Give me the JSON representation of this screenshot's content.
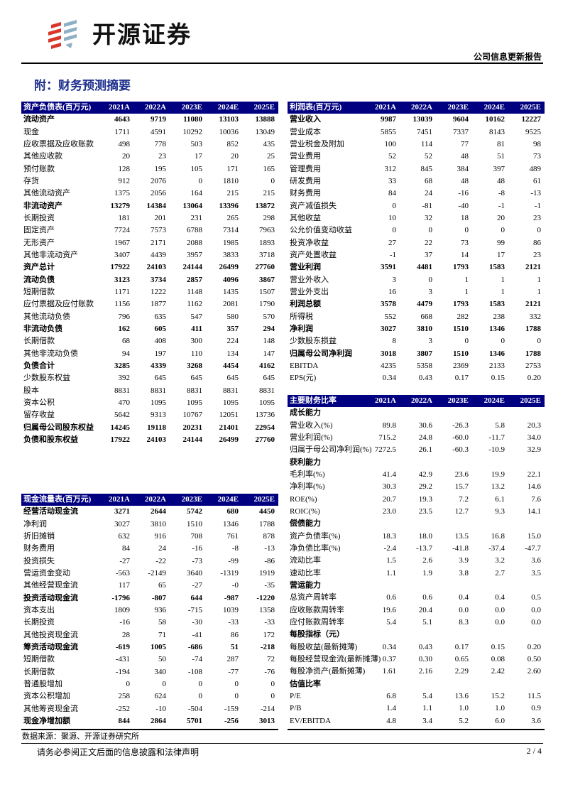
{
  "header": {
    "brand": "开源证券",
    "report_type": "公司信息更新报告",
    "colors": {
      "brand_red": "#d9372b",
      "brand_blue": "#8fb0c4"
    }
  },
  "title": "附：财务预测摘要",
  "columns": [
    "2021A",
    "2022A",
    "2023E",
    "2024E",
    "2025E"
  ],
  "balance_sheet": {
    "title": "资产负债表(百万元)",
    "rows": [
      {
        "label": "流动资产",
        "bold": true,
        "values": [
          "4643",
          "9719",
          "11080",
          "13103",
          "13888"
        ]
      },
      {
        "label": "现金",
        "values": [
          "1711",
          "4591",
          "10292",
          "10036",
          "13049"
        ]
      },
      {
        "label": "应收票据及应收账款",
        "values": [
          "498",
          "778",
          "503",
          "852",
          "435"
        ]
      },
      {
        "label": "其他应收款",
        "values": [
          "20",
          "23",
          "17",
          "20",
          "25"
        ]
      },
      {
        "label": "预付账款",
        "values": [
          "128",
          "195",
          "105",
          "171",
          "165"
        ]
      },
      {
        "label": "存货",
        "values": [
          "912",
          "2076",
          "0",
          "1810",
          "0"
        ]
      },
      {
        "label": "其他流动资产",
        "values": [
          "1375",
          "2056",
          "164",
          "215",
          "215"
        ]
      },
      {
        "label": "非流动资产",
        "bold": true,
        "values": [
          "13279",
          "14384",
          "13064",
          "13396",
          "13872"
        ]
      },
      {
        "label": "长期投资",
        "values": [
          "181",
          "201",
          "231",
          "265",
          "298"
        ]
      },
      {
        "label": "固定资产",
        "values": [
          "7724",
          "7573",
          "6788",
          "7314",
          "7963"
        ]
      },
      {
        "label": "无形资产",
        "values": [
          "1967",
          "2171",
          "2088",
          "1985",
          "1893"
        ]
      },
      {
        "label": "其他非流动资产",
        "values": [
          "3407",
          "4439",
          "3957",
          "3833",
          "3718"
        ]
      },
      {
        "label": "资产总计",
        "bold": true,
        "values": [
          "17922",
          "24103",
          "24144",
          "26499",
          "27760"
        ]
      },
      {
        "label": "流动负债",
        "bold": true,
        "values": [
          "3123",
          "3734",
          "2857",
          "4096",
          "3867"
        ]
      },
      {
        "label": "短期借款",
        "values": [
          "1171",
          "1222",
          "1148",
          "1435",
          "1507"
        ]
      },
      {
        "label": "应付票据及应付账款",
        "values": [
          "1156",
          "1877",
          "1162",
          "2081",
          "1790"
        ]
      },
      {
        "label": "其他流动负债",
        "values": [
          "796",
          "635",
          "547",
          "580",
          "570"
        ]
      },
      {
        "label": "非流动负债",
        "bold": true,
        "values": [
          "162",
          "605",
          "411",
          "357",
          "294"
        ]
      },
      {
        "label": "长期借款",
        "values": [
          "68",
          "408",
          "300",
          "224",
          "148"
        ]
      },
      {
        "label": "其他非流动负债",
        "values": [
          "94",
          "197",
          "110",
          "134",
          "147"
        ]
      },
      {
        "label": "负债合计",
        "bold": true,
        "values": [
          "3285",
          "4339",
          "3268",
          "4454",
          "4162"
        ]
      },
      {
        "label": "少数股东权益",
        "values": [
          "392",
          "645",
          "645",
          "645",
          "645"
        ]
      },
      {
        "label": "股本",
        "values": [
          "8831",
          "8831",
          "8831",
          "8831",
          "8831"
        ]
      },
      {
        "label": "资本公积",
        "values": [
          "470",
          "1095",
          "1095",
          "1095",
          "1095"
        ]
      },
      {
        "label": "留存收益",
        "values": [
          "5642",
          "9313",
          "10767",
          "12051",
          "13736"
        ]
      },
      {
        "label": "归属母公司股东权益",
        "bold": true,
        "values": [
          "14245",
          "19118",
          "20231",
          "21401",
          "22954"
        ]
      },
      {
        "label": "负债和股东权益",
        "bold": true,
        "values": [
          "17922",
          "24103",
          "24144",
          "26499",
          "27760"
        ]
      }
    ]
  },
  "cash_flow": {
    "title": "现金流量表(百万元)",
    "rows": [
      {
        "label": "经营活动现金流",
        "bold": true,
        "values": [
          "3271",
          "2644",
          "5742",
          "680",
          "4450"
        ]
      },
      {
        "label": "净利润",
        "values": [
          "3027",
          "3810",
          "1510",
          "1346",
          "1788"
        ]
      },
      {
        "label": "折旧摊销",
        "values": [
          "632",
          "916",
          "708",
          "761",
          "878"
        ]
      },
      {
        "label": "财务费用",
        "values": [
          "84",
          "24",
          "-16",
          "-8",
          "-13"
        ]
      },
      {
        "label": "投资损失",
        "values": [
          "-27",
          "-22",
          "-73",
          "-99",
          "-86"
        ]
      },
      {
        "label": "营运资金变动",
        "values": [
          "-563",
          "-2149",
          "3640",
          "-1319",
          "1919"
        ]
      },
      {
        "label": "其他经营现金流",
        "values": [
          "117",
          "65",
          "-27",
          "-0",
          "-35"
        ]
      },
      {
        "label": "投资活动现金流",
        "bold": true,
        "values": [
          "-1796",
          "-807",
          "644",
          "-987",
          "-1220"
        ]
      },
      {
        "label": "资本支出",
        "values": [
          "1809",
          "936",
          "-715",
          "1039",
          "1358"
        ]
      },
      {
        "label": "长期投资",
        "values": [
          "-16",
          "58",
          "-30",
          "-33",
          "-33"
        ]
      },
      {
        "label": "其他投资现金流",
        "values": [
          "28",
          "71",
          "-41",
          "86",
          "172"
        ]
      },
      {
        "label": "筹资活动现金流",
        "bold": true,
        "values": [
          "-619",
          "1005",
          "-686",
          "51",
          "-218"
        ]
      },
      {
        "label": "短期借款",
        "values": [
          "-431",
          "50",
          "-74",
          "287",
          "72"
        ]
      },
      {
        "label": "长期借款",
        "values": [
          "-194",
          "340",
          "-108",
          "-77",
          "-76"
        ]
      },
      {
        "label": "普通股增加",
        "values": [
          "0",
          "0",
          "0",
          "0",
          "0"
        ]
      },
      {
        "label": "资本公积增加",
        "values": [
          "258",
          "624",
          "0",
          "0",
          "0"
        ]
      },
      {
        "label": "其他筹资现金流",
        "values": [
          "-252",
          "-10",
          "-504",
          "-159",
          "-214"
        ]
      },
      {
        "label": "现金净增加额",
        "bold": true,
        "values": [
          "844",
          "2864",
          "5701",
          "-256",
          "3013"
        ]
      }
    ]
  },
  "income_statement": {
    "title": "利润表(百万元)",
    "rows": [
      {
        "label": "营业收入",
        "bold": true,
        "values": [
          "9987",
          "13039",
          "9604",
          "10162",
          "12227"
        ]
      },
      {
        "label": "营业成本",
        "values": [
          "5855",
          "7451",
          "7337",
          "8143",
          "9525"
        ]
      },
      {
        "label": "营业税金及附加",
        "values": [
          "100",
          "114",
          "77",
          "81",
          "98"
        ]
      },
      {
        "label": "营业费用",
        "values": [
          "52",
          "52",
          "48",
          "51",
          "73"
        ]
      },
      {
        "label": "管理费用",
        "values": [
          "312",
          "845",
          "384",
          "397",
          "489"
        ]
      },
      {
        "label": "研发费用",
        "values": [
          "33",
          "68",
          "48",
          "48",
          "61"
        ]
      },
      {
        "label": "财务费用",
        "values": [
          "84",
          "24",
          "-16",
          "-8",
          "-13"
        ]
      },
      {
        "label": "资产减值损失",
        "values": [
          "0",
          "-81",
          "-40",
          "-1",
          "-1"
        ]
      },
      {
        "label": "其他收益",
        "values": [
          "10",
          "32",
          "18",
          "20",
          "23"
        ]
      },
      {
        "label": "公允价值变动收益",
        "values": [
          "0",
          "0",
          "0",
          "0",
          "0"
        ]
      },
      {
        "label": "投资净收益",
        "values": [
          "27",
          "22",
          "73",
          "99",
          "86"
        ]
      },
      {
        "label": "资产处置收益",
        "values": [
          "-1",
          "37",
          "14",
          "17",
          "23"
        ]
      },
      {
        "label": "营业利润",
        "bold": true,
        "values": [
          "3591",
          "4481",
          "1793",
          "1583",
          "2121"
        ]
      },
      {
        "label": "营业外收入",
        "values": [
          "3",
          "0",
          "1",
          "1",
          "1"
        ]
      },
      {
        "label": "营业外支出",
        "values": [
          "16",
          "3",
          "1",
          "1",
          "1"
        ]
      },
      {
        "label": "利润总额",
        "bold": true,
        "values": [
          "3578",
          "4479",
          "1793",
          "1583",
          "2121"
        ]
      },
      {
        "label": "所得税",
        "values": [
          "552",
          "668",
          "282",
          "238",
          "332"
        ]
      },
      {
        "label": "净利润",
        "bold": true,
        "values": [
          "3027",
          "3810",
          "1510",
          "1346",
          "1788"
        ]
      },
      {
        "label": "少数股东损益",
        "values": [
          "8",
          "3",
          "0",
          "0",
          "0"
        ]
      },
      {
        "label": "归属母公司净利润",
        "bold": true,
        "values": [
          "3018",
          "3807",
          "1510",
          "1346",
          "1788"
        ]
      },
      {
        "label": "EBITDA",
        "values": [
          "4235",
          "5358",
          "2369",
          "2133",
          "2753"
        ]
      },
      {
        "label": "EPS(元)",
        "values": [
          "0.34",
          "0.43",
          "0.17",
          "0.15",
          "0.20"
        ]
      }
    ]
  },
  "ratios": {
    "title": "主要财务比率",
    "rows": [
      {
        "label": "成长能力",
        "bold": true,
        "values": []
      },
      {
        "label": "营业收入(%)",
        "values": [
          "89.8",
          "30.6",
          "-26.3",
          "5.8",
          "20.3"
        ]
      },
      {
        "label": "营业利润(%)",
        "values": [
          "715.2",
          "24.8",
          "-60.0",
          "-11.7",
          "34.0"
        ]
      },
      {
        "label": "归属于母公司净利润(%)",
        "values": [
          "7272.5",
          "26.1",
          "-60.3",
          "-10.9",
          "32.9"
        ]
      },
      {
        "label": "获利能力",
        "bold": true,
        "values": []
      },
      {
        "label": "毛利率(%)",
        "values": [
          "41.4",
          "42.9",
          "23.6",
          "19.9",
          "22.1"
        ]
      },
      {
        "label": "净利率(%)",
        "values": [
          "30.3",
          "29.2",
          "15.7",
          "13.2",
          "14.6"
        ]
      },
      {
        "label": "ROE(%)",
        "values": [
          "20.7",
          "19.3",
          "7.2",
          "6.1",
          "7.6"
        ]
      },
      {
        "label": "ROIC(%)",
        "values": [
          "23.0",
          "23.5",
          "12.7",
          "9.3",
          "14.1"
        ]
      },
      {
        "label": "偿债能力",
        "bold": true,
        "values": []
      },
      {
        "label": "资产负债率(%)",
        "values": [
          "18.3",
          "18.0",
          "13.5",
          "16.8",
          "15.0"
        ]
      },
      {
        "label": "净负债比率(%)",
        "values": [
          "-2.4",
          "-13.7",
          "-41.8",
          "-37.4",
          "-47.7"
        ]
      },
      {
        "label": "流动比率",
        "values": [
          "1.5",
          "2.6",
          "3.9",
          "3.2",
          "3.6"
        ]
      },
      {
        "label": "速动比率",
        "values": [
          "1.1",
          "1.9",
          "3.8",
          "2.7",
          "3.5"
        ]
      },
      {
        "label": "营运能力",
        "bold": true,
        "values": []
      },
      {
        "label": "总资产周转率",
        "values": [
          "0.6",
          "0.6",
          "0.4",
          "0.4",
          "0.5"
        ]
      },
      {
        "label": "应收账款周转率",
        "values": [
          "19.6",
          "20.4",
          "0.0",
          "0.0",
          "0.0"
        ]
      },
      {
        "label": "应付账款周转率",
        "values": [
          "5.4",
          "5.1",
          "8.3",
          "0.0",
          "0.0"
        ]
      },
      {
        "label": "每股指标（元）",
        "bold": true,
        "values": []
      },
      {
        "label": "每股收益(最新摊薄)",
        "values": [
          "0.34",
          "0.43",
          "0.17",
          "0.15",
          "0.20"
        ]
      },
      {
        "label": "每股经营现金流(最新摊薄)",
        "values": [
          "0.37",
          "0.30",
          "0.65",
          "0.08",
          "0.50"
        ]
      },
      {
        "label": "每股净资产(最新摊薄)",
        "values": [
          "1.61",
          "2.16",
          "2.29",
          "2.42",
          "2.60"
        ]
      },
      {
        "label": "估值比率",
        "bold": true,
        "values": []
      },
      {
        "label": "P/E",
        "values": [
          "6.8",
          "5.4",
          "13.6",
          "15.2",
          "11.5"
        ]
      },
      {
        "label": "P/B",
        "values": [
          "1.4",
          "1.1",
          "1.0",
          "1.0",
          "0.9"
        ]
      },
      {
        "label": "EV/EBITDA",
        "values": [
          "4.8",
          "3.4",
          "5.2",
          "6.0",
          "3.6"
        ]
      }
    ]
  },
  "source": "数据来源：聚源、开源证券研究所",
  "footer": {
    "disclaimer": "请务必参阅正文后面的信息披露和法律声明",
    "page": "2 / 4"
  }
}
